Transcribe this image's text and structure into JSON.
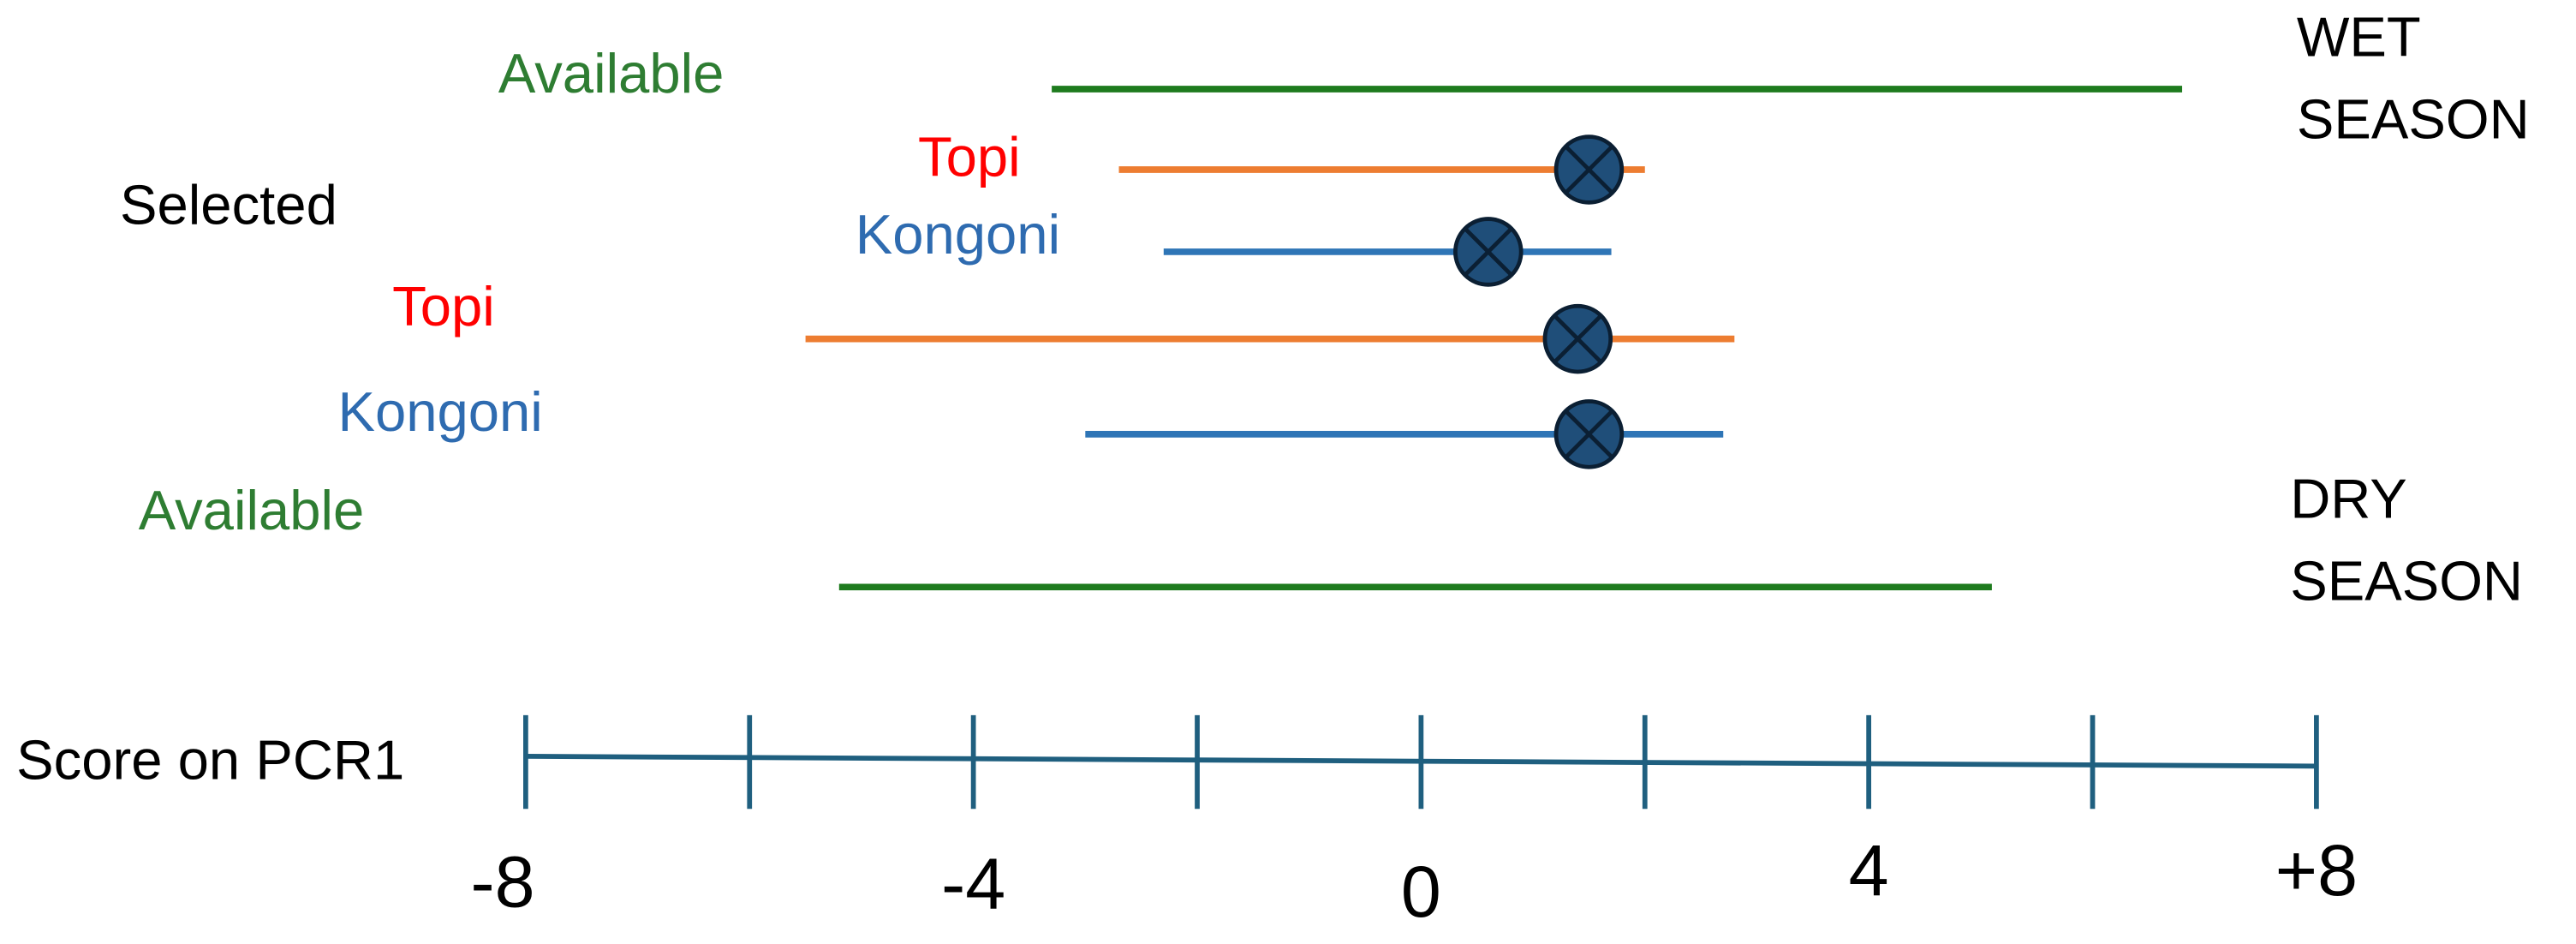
{
  "chart_data": {
    "type": "range",
    "x_label": "Score on PCR1",
    "selected_label": "Selected",
    "xlim": [
      -8,
      8
    ],
    "xticks": [
      -8,
      -4,
      0,
      4,
      {
        "value": 8,
        "label": "+8"
      }
    ],
    "minor_xticks": [
      -6,
      -2,
      2,
      6
    ],
    "axis_color": "#1f5f7f",
    "point_color": "#1f4e79",
    "groups": [
      {
        "name": "WET SEASON",
        "rows": [
          {
            "label": "Available",
            "label_color": "#2e7d32",
            "color": "#1e7b1e",
            "range": [
              -3.3,
              6.8
            ]
          },
          {
            "label": "Topi",
            "label_color": "#ff0000",
            "color": "#ed7d31",
            "range": [
              -2.7,
              2.0
            ],
            "point": 1.5
          },
          {
            "label": "Kongoni",
            "label_color": "#2e6bb0",
            "color": "#2e75b6",
            "range": [
              -2.3,
              1.7
            ],
            "point": 0.6
          }
        ]
      },
      {
        "name": "DRY SEASON",
        "rows": [
          {
            "label": "Topi",
            "label_color": "#ff0000",
            "color": "#ed7d31",
            "range": [
              -5.5,
              2.8
            ],
            "point": 1.4
          },
          {
            "label": "Kongoni",
            "label_color": "#2e6bb0",
            "color": "#2e75b6",
            "range": [
              -3.0,
              2.7
            ],
            "point": 1.5
          },
          {
            "label": "Available",
            "label_color": "#2e7d32",
            "color": "#1e7b1e",
            "range": [
              -5.2,
              5.1
            ]
          }
        ]
      }
    ]
  }
}
